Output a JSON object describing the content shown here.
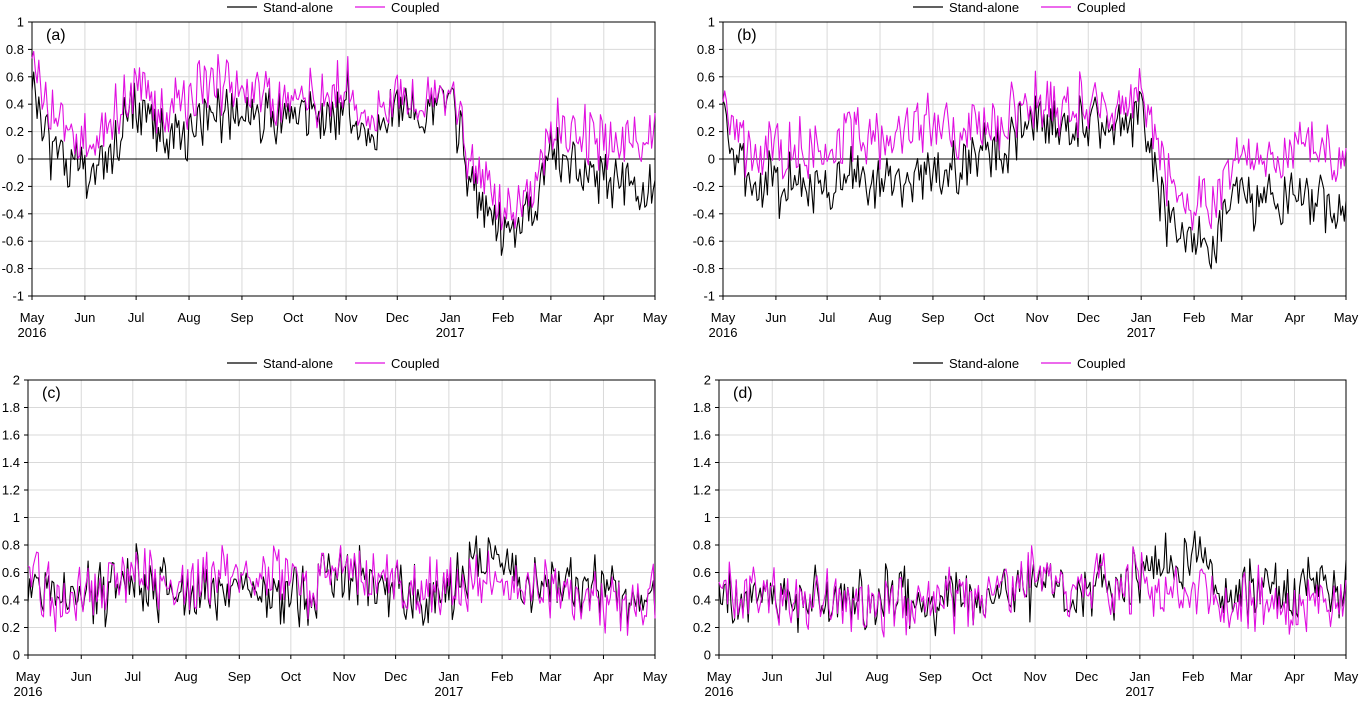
{
  "legend": {
    "standalone": "Stand-alone",
    "coupled": "Coupled"
  },
  "colors": {
    "standalone": "#000000",
    "coupled": "#e010e0",
    "grid": "#d9d9d9",
    "axis": "#000000"
  },
  "x_ticks": [
    {
      "label": "May",
      "sub": "2016",
      "date": "2016-05-01"
    },
    {
      "label": "Jun",
      "sub": "",
      "date": "2016-06-01"
    },
    {
      "label": "Jul",
      "sub": "",
      "date": "2016-07-01"
    },
    {
      "label": "Aug",
      "sub": "",
      "date": "2016-08-01"
    },
    {
      "label": "Sep",
      "sub": "",
      "date": "2016-09-01"
    },
    {
      "label": "Oct",
      "sub": "",
      "date": "2016-10-01"
    },
    {
      "label": "Nov",
      "sub": "",
      "date": "2016-11-01"
    },
    {
      "label": "Dec",
      "sub": "",
      "date": "2016-12-01"
    },
    {
      "label": "Jan",
      "sub": "2017",
      "date": "2017-01-01"
    },
    {
      "label": "Feb",
      "sub": "",
      "date": "2017-02-01"
    },
    {
      "label": "Mar",
      "sub": "",
      "date": "2017-03-01"
    },
    {
      "label": "Apr",
      "sub": "",
      "date": "2017-04-01"
    },
    {
      "label": "May",
      "sub": "",
      "date": "2017-05-01"
    }
  ],
  "chart_data": [
    {
      "type": "line",
      "panel_label": "(a)",
      "xlim": [
        "2016-05-01",
        "2017-05-01"
      ],
      "ylim": [
        -1,
        1
      ],
      "yticks": [
        -1,
        -0.8,
        -0.6,
        -0.4,
        -0.2,
        0,
        0.2,
        0.4,
        0.6,
        0.8,
        1
      ],
      "zero_line": true,
      "grid": true,
      "legend_position": "top-center",
      "x": [
        "2016-05-01",
        "2016-05-15",
        "2016-06-01",
        "2016-06-15",
        "2016-07-01",
        "2016-07-15",
        "2016-08-01",
        "2016-08-15",
        "2016-09-01",
        "2016-09-15",
        "2016-10-01",
        "2016-10-15",
        "2016-11-01",
        "2016-11-15",
        "2016-12-01",
        "2016-12-15",
        "2017-01-01",
        "2017-01-15",
        "2017-02-01",
        "2017-02-15",
        "2017-03-01",
        "2017-03-15",
        "2017-04-01",
        "2017-04-15",
        "2017-05-01"
      ],
      "series": [
        {
          "name": "Stand-alone",
          "color": "#000000",
          "values": [
            0.45,
            0.0,
            -0.1,
            0.1,
            0.35,
            0.25,
            0.2,
            0.3,
            0.35,
            0.35,
            0.35,
            0.3,
            0.45,
            0.15,
            0.4,
            0.3,
            0.45,
            -0.25,
            -0.55,
            -0.45,
            0.05,
            -0.05,
            -0.15,
            -0.25,
            -0.2
          ]
        },
        {
          "name": "Coupled",
          "color": "#e010e0",
          "values": [
            0.6,
            0.25,
            0.1,
            0.3,
            0.55,
            0.4,
            0.45,
            0.5,
            0.5,
            0.5,
            0.45,
            0.4,
            0.55,
            0.3,
            0.5,
            0.35,
            0.5,
            -0.1,
            -0.35,
            -0.3,
            0.25,
            0.15,
            0.15,
            0.1,
            0.2
          ]
        }
      ]
    },
    {
      "type": "line",
      "panel_label": "(b)",
      "xlim": [
        "2016-05-01",
        "2017-05-01"
      ],
      "ylim": [
        -1,
        1
      ],
      "yticks": [
        -1,
        -0.8,
        -0.6,
        -0.4,
        -0.2,
        0,
        0.2,
        0.4,
        0.6,
        0.8,
        1
      ],
      "zero_line": true,
      "grid": true,
      "legend_position": "top-center",
      "x": [
        "2016-05-01",
        "2016-05-15",
        "2016-06-01",
        "2016-06-15",
        "2016-07-01",
        "2016-07-15",
        "2016-08-01",
        "2016-08-15",
        "2016-09-01",
        "2016-09-15",
        "2016-10-01",
        "2016-10-15",
        "2016-11-01",
        "2016-11-15",
        "2016-12-01",
        "2016-12-15",
        "2017-01-01",
        "2017-01-15",
        "2017-02-01",
        "2017-02-15",
        "2017-03-01",
        "2017-03-15",
        "2017-04-01",
        "2017-04-15",
        "2017-05-01"
      ],
      "series": [
        {
          "name": "Stand-alone",
          "color": "#000000",
          "values": [
            0.25,
            -0.15,
            -0.2,
            -0.15,
            -0.15,
            -0.15,
            -0.2,
            -0.15,
            -0.1,
            -0.05,
            0.1,
            0.05,
            0.35,
            0.2,
            0.25,
            0.25,
            0.3,
            -0.4,
            -0.6,
            -0.55,
            -0.25,
            -0.3,
            -0.3,
            -0.35,
            -0.3
          ]
        },
        {
          "name": "Coupled",
          "color": "#e010e0",
          "values": [
            0.4,
            0.05,
            0.05,
            0.1,
            0.15,
            0.15,
            0.15,
            0.2,
            0.25,
            0.25,
            0.3,
            0.3,
            0.45,
            0.35,
            0.4,
            0.4,
            0.45,
            -0.1,
            -0.35,
            -0.3,
            0.05,
            0.0,
            0.05,
            0.0,
            0.05
          ]
        }
      ]
    },
    {
      "type": "line",
      "panel_label": "(c)",
      "xlim": [
        "2016-05-01",
        "2017-05-01"
      ],
      "ylim": [
        0,
        2
      ],
      "yticks": [
        0,
        0.2,
        0.4,
        0.6,
        0.8,
        1,
        1.2,
        1.4,
        1.6,
        1.8,
        2
      ],
      "zero_line": false,
      "grid": true,
      "legend_position": "top-center",
      "x": [
        "2016-05-01",
        "2016-05-15",
        "2016-06-01",
        "2016-06-15",
        "2016-07-01",
        "2016-07-15",
        "2016-08-01",
        "2016-08-15",
        "2016-09-01",
        "2016-09-15",
        "2016-10-01",
        "2016-10-15",
        "2016-11-01",
        "2016-11-15",
        "2016-12-01",
        "2016-12-15",
        "2017-01-01",
        "2017-01-15",
        "2017-02-01",
        "2017-02-15",
        "2017-03-01",
        "2017-03-15",
        "2017-04-01",
        "2017-04-15",
        "2017-05-01"
      ],
      "series": [
        {
          "name": "Stand-alone",
          "color": "#000000",
          "values": [
            0.55,
            0.42,
            0.45,
            0.45,
            0.55,
            0.5,
            0.45,
            0.45,
            0.5,
            0.45,
            0.45,
            0.45,
            0.6,
            0.5,
            0.45,
            0.45,
            0.45,
            0.65,
            0.75,
            0.5,
            0.5,
            0.5,
            0.55,
            0.45,
            0.45
          ]
        },
        {
          "name": "Coupled",
          "color": "#e010e0",
          "values": [
            0.65,
            0.42,
            0.42,
            0.45,
            0.6,
            0.55,
            0.5,
            0.55,
            0.6,
            0.55,
            0.55,
            0.5,
            0.65,
            0.5,
            0.5,
            0.45,
            0.5,
            0.5,
            0.55,
            0.45,
            0.45,
            0.45,
            0.4,
            0.38,
            0.45
          ]
        }
      ]
    },
    {
      "type": "line",
      "panel_label": "(d)",
      "xlim": [
        "2016-05-01",
        "2017-05-01"
      ],
      "ylim": [
        0,
        2
      ],
      "yticks": [
        0,
        0.2,
        0.4,
        0.6,
        0.8,
        1,
        1.2,
        1.4,
        1.6,
        1.8,
        2
      ],
      "zero_line": false,
      "grid": true,
      "legend_position": "top-center",
      "x": [
        "2016-05-01",
        "2016-05-15",
        "2016-06-01",
        "2016-06-15",
        "2016-07-01",
        "2016-07-15",
        "2016-08-01",
        "2016-08-15",
        "2016-09-01",
        "2016-09-15",
        "2016-10-01",
        "2016-10-15",
        "2016-11-01",
        "2016-11-15",
        "2016-12-01",
        "2016-12-15",
        "2017-01-01",
        "2017-01-15",
        "2017-02-01",
        "2017-02-15",
        "2017-03-01",
        "2017-03-15",
        "2017-04-01",
        "2017-04-15",
        "2017-05-01"
      ],
      "series": [
        {
          "name": "Stand-alone",
          "color": "#000000",
          "values": [
            0.45,
            0.42,
            0.45,
            0.42,
            0.42,
            0.42,
            0.4,
            0.42,
            0.38,
            0.4,
            0.42,
            0.45,
            0.5,
            0.48,
            0.5,
            0.5,
            0.55,
            0.65,
            0.75,
            0.45,
            0.45,
            0.5,
            0.5,
            0.5,
            0.48
          ]
        },
        {
          "name": "Coupled",
          "color": "#e010e0",
          "values": [
            0.5,
            0.42,
            0.42,
            0.42,
            0.42,
            0.4,
            0.38,
            0.38,
            0.38,
            0.4,
            0.45,
            0.5,
            0.55,
            0.5,
            0.55,
            0.5,
            0.55,
            0.48,
            0.5,
            0.38,
            0.38,
            0.4,
            0.38,
            0.38,
            0.4
          ]
        }
      ]
    }
  ]
}
